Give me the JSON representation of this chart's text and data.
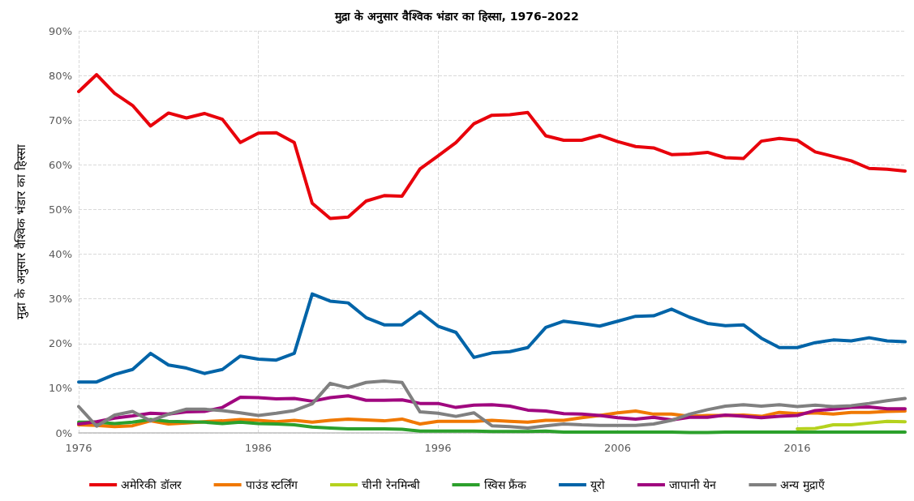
{
  "chart_data": {
    "type": "line",
    "title": "मुद्रा के अनुसार वैश्विक भंडार का हिस्सा, 1976–2022",
    "ylabel": "मुद्रा के अनुसार वैश्विक भंडार का हिस्सा",
    "categories": [
      "1976",
      null,
      null,
      null,
      null,
      null,
      null,
      null,
      null,
      null,
      "1986",
      null,
      null,
      null,
      null,
      null,
      null,
      null,
      null,
      null,
      "1996",
      null,
      null,
      null,
      null,
      null,
      null,
      null,
      null,
      null,
      "2006",
      null,
      null,
      null,
      null,
      null,
      null,
      null,
      null,
      null,
      "2016",
      null,
      null,
      null,
      null,
      null,
      null
    ],
    "ylim": [
      0,
      90
    ],
    "yticks": [
      {
        "value": 0,
        "label": "0%"
      },
      {
        "value": 10,
        "label": "10%"
      },
      {
        "value": 20,
        "label": "20%"
      },
      {
        "value": 30,
        "label": "30%"
      },
      {
        "value": 40,
        "label": "40%"
      },
      {
        "value": 50,
        "label": "50%"
      },
      {
        "value": 60,
        "label": "60%"
      },
      {
        "value": 70,
        "label": "70%"
      },
      {
        "value": 80,
        "label": "80%"
      },
      {
        "value": 90,
        "label": "90%"
      }
    ],
    "grid": true,
    "legend": "bottom",
    "marker": "none",
    "line_style": "solid",
    "series": [
      {
        "name": "अमेरिकी डॉलर",
        "color": "#e8000b",
        "values": [
          76.4,
          80.2,
          76.0,
          73.3,
          68.7,
          71.6,
          70.5,
          71.5,
          70.2,
          65.0,
          67.1,
          67.2,
          65.0,
          51.4,
          48.0,
          48.3,
          51.9,
          53.1,
          53.0,
          59.1,
          62.0,
          65.0,
          69.2,
          71.1,
          71.2,
          71.7,
          66.5,
          65.5,
          65.5,
          66.6,
          65.2,
          64.1,
          63.8,
          62.3,
          62.4,
          62.8,
          61.6,
          61.4,
          65.3,
          65.9,
          65.5,
          62.9,
          61.9,
          60.9,
          59.2,
          59.0,
          58.6
        ]
      },
      {
        "name": "पाउंड स्टर्लिंग",
        "color": "#f07800",
        "values": [
          1.8,
          1.7,
          1.4,
          1.6,
          2.7,
          2.0,
          2.2,
          2.5,
          2.7,
          3.0,
          2.8,
          2.5,
          2.8,
          2.4,
          2.8,
          3.1,
          2.9,
          2.7,
          3.1,
          2.0,
          2.6,
          2.6,
          2.6,
          2.8,
          2.6,
          2.4,
          2.8,
          2.8,
          3.4,
          3.9,
          4.5,
          4.9,
          4.2,
          4.2,
          3.7,
          3.9,
          3.9,
          4.0,
          3.7,
          4.6,
          4.3,
          4.5,
          4.2,
          4.6,
          4.6,
          4.8,
          4.9
        ]
      },
      {
        "name": "चीनी रेनमिन्बी",
        "color": "#b5d21e",
        "values": [
          null,
          null,
          null,
          null,
          null,
          null,
          null,
          null,
          null,
          null,
          null,
          null,
          null,
          null,
          null,
          null,
          null,
          null,
          null,
          null,
          null,
          null,
          null,
          null,
          null,
          null,
          null,
          null,
          null,
          null,
          null,
          null,
          null,
          null,
          null,
          null,
          null,
          null,
          null,
          null,
          0.9,
          1.0,
          1.8,
          1.8,
          2.2,
          2.6,
          2.5
        ]
      },
      {
        "name": "स्विस फ्रैंक",
        "color": "#2ca02c",
        "values": [
          2.4,
          2.4,
          2.1,
          2.4,
          3.0,
          2.6,
          2.5,
          2.4,
          2.1,
          2.4,
          2.1,
          2.0,
          1.8,
          1.3,
          1.1,
          0.9,
          0.9,
          0.9,
          0.8,
          0.4,
          0.4,
          0.4,
          0.4,
          0.3,
          0.3,
          0.3,
          0.4,
          0.2,
          0.2,
          0.2,
          0.2,
          0.2,
          0.2,
          0.2,
          0.1,
          0.1,
          0.2,
          0.2,
          0.2,
          0.2,
          0.2,
          0.2,
          0.2,
          0.2,
          0.2,
          0.2,
          0.2
        ]
      },
      {
        "name": "यूरो",
        "color": "#0064a8",
        "values": [
          11.4,
          11.4,
          13.1,
          14.2,
          17.8,
          15.2,
          14.5,
          13.3,
          14.2,
          17.2,
          16.5,
          16.3,
          17.8,
          31.1,
          29.5,
          29.1,
          25.8,
          24.2,
          24.2,
          27.1,
          23.9,
          22.5,
          16.9,
          17.9,
          18.2,
          19.1,
          23.6,
          25.0,
          24.5,
          23.9,
          25.0,
          26.1,
          26.2,
          27.7,
          25.9,
          24.5,
          24.0,
          24.2,
          21.2,
          19.1,
          19.1,
          20.2,
          20.8,
          20.6,
          21.3,
          20.6,
          20.4
        ]
      },
      {
        "name": "जापानी येन",
        "color": "#a0077f",
        "values": [
          2.0,
          2.5,
          3.3,
          3.8,
          4.4,
          4.2,
          4.7,
          4.8,
          5.7,
          8.0,
          7.9,
          7.6,
          7.7,
          7.1,
          7.9,
          8.3,
          7.3,
          7.3,
          7.4,
          6.6,
          6.6,
          5.7,
          6.2,
          6.3,
          6.0,
          5.1,
          4.9,
          4.3,
          4.2,
          3.9,
          3.4,
          3.1,
          3.5,
          2.9,
          3.5,
          3.5,
          4.0,
          3.7,
          3.4,
          3.7,
          3.9,
          5.0,
          5.3,
          5.7,
          5.8,
          5.4,
          5.4
        ]
      },
      {
        "name": "अन्य मुद्राएँ",
        "color": "#808080",
        "values": [
          5.9,
          1.5,
          4.0,
          4.8,
          2.7,
          4.2,
          5.3,
          5.3,
          5.0,
          4.5,
          3.9,
          4.4,
          5.0,
          6.5,
          11.1,
          10.1,
          11.3,
          11.6,
          11.3,
          4.7,
          4.4,
          3.7,
          4.5,
          1.6,
          1.4,
          1.1,
          1.6,
          2.0,
          1.8,
          1.7,
          1.7,
          1.7,
          2.0,
          2.8,
          4.2,
          5.2,
          6.0,
          6.3,
          6.0,
          6.3,
          5.9,
          6.2,
          5.9,
          6.1,
          6.6,
          7.2,
          7.7
        ]
      }
    ]
  }
}
